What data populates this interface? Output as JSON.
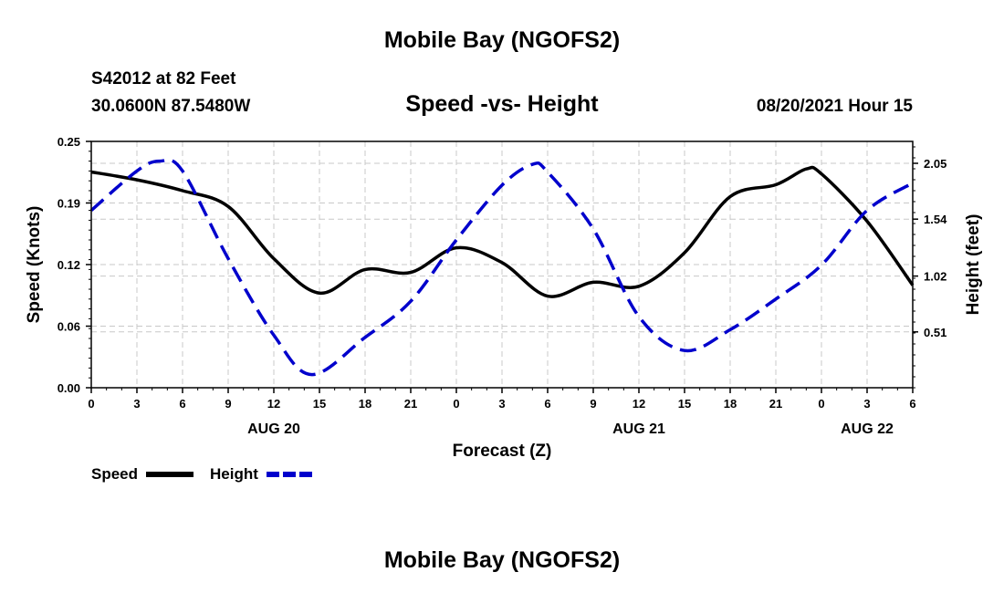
{
  "header": {
    "title": "Mobile Bay (NGOFS2)",
    "station": "S42012 at 82 Feet",
    "coords": "30.0600N  87.5480W",
    "subtitle": "Speed -vs- Height",
    "datetime": "08/20/2021 Hour 15"
  },
  "footer": {
    "title": "Mobile Bay (NGOFS2)"
  },
  "legend": {
    "items": [
      {
        "label": "Speed",
        "color": "#000000",
        "dashed": false
      },
      {
        "label": "Height",
        "color": "#0000cc",
        "dashed": true
      }
    ]
  },
  "chart_data": {
    "type": "line",
    "xlabel": "Forecast (Z)",
    "ylabel": "Speed (Knots)",
    "y2label": "Height (feet)",
    "xlim": [
      0,
      54
    ],
    "ylim": [
      0,
      0.25
    ],
    "y2lim": [
      0,
      2.25
    ],
    "x_ticks": [
      0,
      3,
      6,
      9,
      12,
      15,
      18,
      21,
      24,
      27,
      30,
      33,
      36,
      39,
      42,
      45,
      48,
      51,
      54
    ],
    "x_tick_labels": [
      "0",
      "3",
      "6",
      "9",
      "12",
      "15",
      "18",
      "21",
      "0",
      "3",
      "6",
      "9",
      "12",
      "15",
      "18",
      "21",
      "0",
      "3",
      "6"
    ],
    "date_labels": [
      {
        "x": 12,
        "label": "AUG 20"
      },
      {
        "x": 36,
        "label": "AUG 21"
      },
      {
        "x": 51,
        "label": "AUG 22"
      }
    ],
    "y_ticks": [
      0.0,
      0.0625,
      0.125,
      0.1875,
      0.25
    ],
    "y_tick_labels": [
      "0.00",
      "0.06",
      "0.12",
      "0.19",
      "0.25"
    ],
    "y2_ticks": [
      0.51,
      1.02,
      1.54,
      2.05
    ],
    "y2_tick_labels": [
      "0.51",
      "1.02",
      "1.54",
      "2.05"
    ],
    "grid": true,
    "series": [
      {
        "name": "Speed",
        "axis": "left",
        "color": "#000000",
        "x": [
          0,
          3,
          6,
          9,
          12,
          15,
          18,
          21,
          24,
          27,
          30,
          33,
          36,
          39,
          42,
          45,
          47,
          48,
          51,
          54
        ],
        "values": [
          0.219,
          0.211,
          0.2,
          0.184,
          0.131,
          0.096,
          0.12,
          0.117,
          0.142,
          0.127,
          0.093,
          0.107,
          0.103,
          0.137,
          0.194,
          0.206,
          0.222,
          0.217,
          0.169,
          0.104
        ]
      },
      {
        "name": "Height",
        "axis": "right",
        "color": "#0000cc",
        "x": [
          0,
          3,
          4.5,
          6,
          9,
          12,
          14.5,
          18,
          21,
          24,
          27,
          29,
          30,
          33,
          36,
          39,
          42,
          45,
          48,
          51,
          54
        ],
        "values": [
          1.62,
          1.98,
          2.07,
          1.98,
          1.18,
          0.48,
          0.12,
          0.46,
          0.79,
          1.35,
          1.85,
          2.04,
          1.97,
          1.45,
          0.65,
          0.34,
          0.53,
          0.81,
          1.12,
          1.62,
          1.87
        ]
      }
    ]
  }
}
